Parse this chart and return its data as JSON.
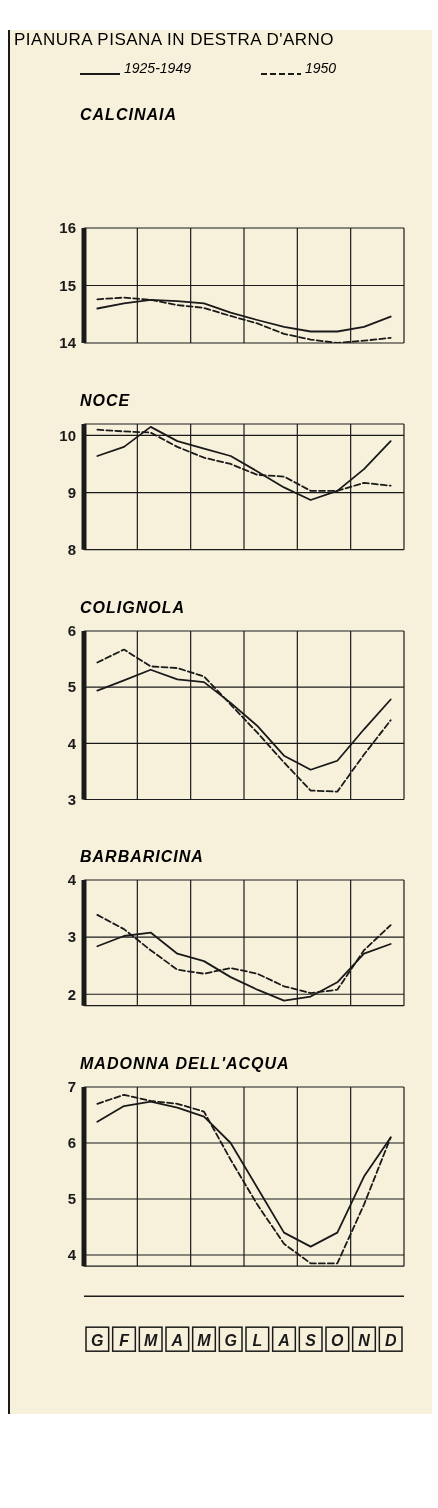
{
  "chart_data": [
    {
      "type": "line",
      "title": "PIANURA PISANA IN DESTRA D'ARNO",
      "subtitle": "CALCINAIA",
      "legend": "top",
      "grid": true,
      "tick_labels": "y",
      "categories": [
        null,
        null,
        null,
        null,
        null,
        null,
        null,
        null,
        null,
        null,
        null,
        null
      ],
      "ylim": [
        14,
        16
      ],
      "yticks": [
        14,
        15,
        16
      ],
      "series": [
        {
          "name": "1925-1949",
          "color": "#1a1a1a",
          "line_style": "solid",
          "values": [
            14.6,
            14.69,
            14.75,
            14.73,
            14.69,
            14.53,
            14.4,
            14.28,
            14.2,
            14.2,
            14.28,
            14.46
          ]
        },
        {
          "name": "1950",
          "color": "#1a1a1a",
          "line_style": "dashed",
          "values": [
            14.76,
            14.79,
            14.75,
            14.66,
            14.61,
            14.47,
            14.34,
            14.16,
            14.06,
            14.0,
            14.04,
            14.09
          ]
        }
      ]
    },
    {
      "type": "line",
      "title": "NOCE",
      "grid": true,
      "tick_labels": "y",
      "categories": [
        null,
        null,
        null,
        null,
        null,
        null,
        null,
        null,
        null,
        null,
        null,
        null
      ],
      "ylim": [
        8,
        10.2
      ],
      "yticks": [
        8,
        9,
        10
      ],
      "series": [
        {
          "color": "#1a1a1a",
          "line_style": "solid",
          "values": [
            9.64,
            9.8,
            10.15,
            9.9,
            9.77,
            9.64,
            9.37,
            9.09,
            8.87,
            9.03,
            9.41,
            9.9
          ]
        },
        {
          "color": "#1a1a1a",
          "line_style": "dashed",
          "values": [
            10.1,
            10.07,
            10.05,
            9.8,
            9.61,
            9.5,
            9.31,
            9.28,
            9.03,
            9.03,
            9.17,
            9.12
          ]
        }
      ]
    },
    {
      "type": "line",
      "title": "COLIGNOLA",
      "grid": true,
      "tick_labels": "y",
      "categories": [
        null,
        null,
        null,
        null,
        null,
        null,
        null,
        null,
        null,
        null,
        null,
        null
      ],
      "ylim": [
        3,
        6
      ],
      "yticks": [
        3,
        4,
        5,
        6
      ],
      "series": [
        {
          "color": "#1a1a1a",
          "line_style": "solid",
          "values": [
            4.94,
            5.12,
            5.31,
            5.14,
            5.09,
            4.72,
            4.31,
            3.78,
            3.53,
            3.69,
            4.25,
            4.78
          ]
        },
        {
          "color": "#1a1a1a",
          "line_style": "dashed",
          "values": [
            5.44,
            5.67,
            5.37,
            5.34,
            5.19,
            4.69,
            4.19,
            3.66,
            3.16,
            3.14,
            3.8,
            4.41
          ]
        }
      ]
    },
    {
      "type": "line",
      "title": "BARBARICINA",
      "grid": true,
      "tick_labels": "y",
      "categories": [
        null,
        null,
        null,
        null,
        null,
        null,
        null,
        null,
        null,
        null,
        null,
        null
      ],
      "ylim": [
        1.8,
        4
      ],
      "yticks": [
        2,
        3,
        4
      ],
      "series": [
        {
          "color": "#1a1a1a",
          "line_style": "solid",
          "values": [
            2.84,
            3.02,
            3.08,
            2.71,
            2.58,
            2.3,
            2.08,
            1.89,
            1.96,
            2.21,
            2.71,
            2.88
          ]
        },
        {
          "color": "#1a1a1a",
          "line_style": "dashed",
          "values": [
            3.39,
            3.14,
            2.77,
            2.43,
            2.36,
            2.46,
            2.36,
            2.14,
            2.02,
            2.08,
            2.77,
            3.21
          ]
        }
      ]
    },
    {
      "type": "line",
      "title": "MADONNA DELL'ACQUA",
      "grid": true,
      "categories": [
        "G",
        "F",
        "M",
        "A",
        "M",
        "G",
        "L",
        "A",
        "S",
        "O",
        "N",
        "D"
      ],
      "ylim": [
        3.8,
        7
      ],
      "yticks": [
        4,
        5,
        6,
        7
      ],
      "series": [
        {
          "color": "#1a1a1a",
          "line_style": "solid",
          "values": [
            6.38,
            6.66,
            6.74,
            6.63,
            6.47,
            6.0,
            5.2,
            4.4,
            4.15,
            4.4,
            5.4,
            6.1
          ]
        },
        {
          "color": "#1a1a1a",
          "line_style": "dashed",
          "values": [
            6.7,
            6.86,
            6.75,
            6.7,
            6.56,
            5.7,
            4.9,
            4.2,
            3.85,
            3.85,
            4.9,
            6.1
          ]
        }
      ]
    }
  ]
}
